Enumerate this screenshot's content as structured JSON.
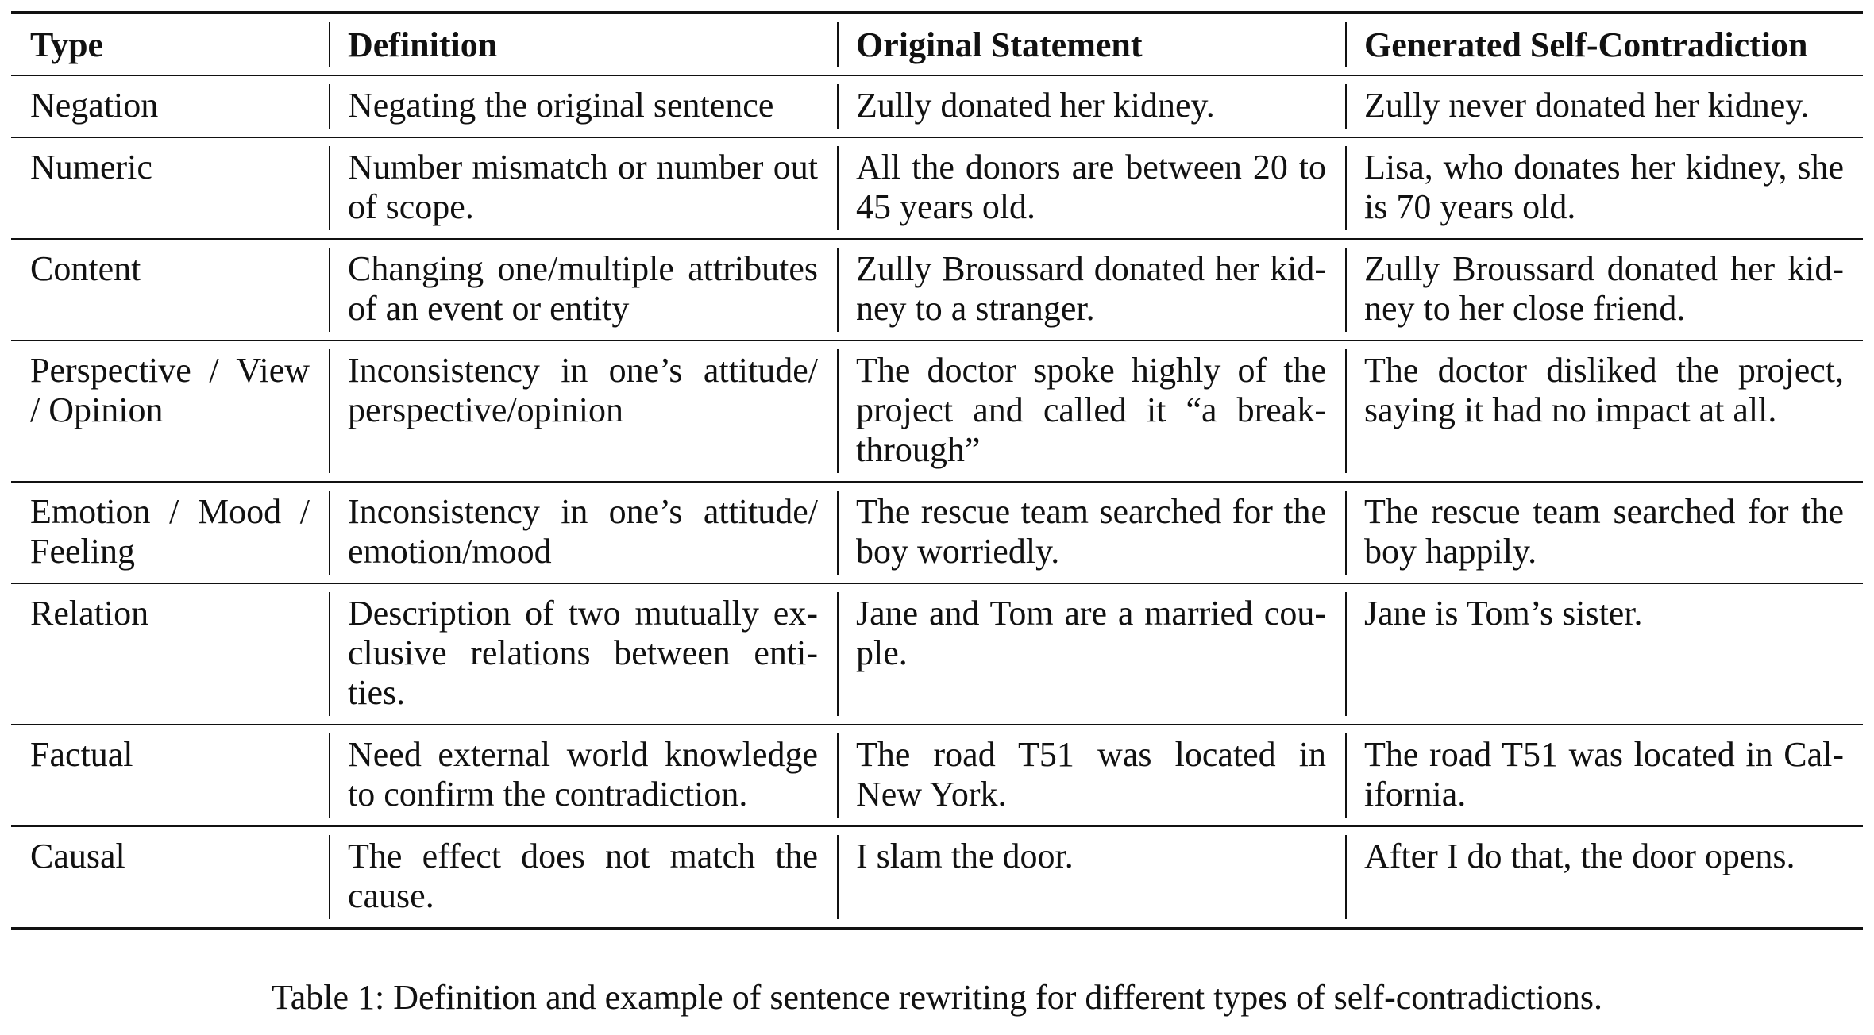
{
  "table": {
    "headers": [
      "Type",
      "Definition",
      "Original Statement",
      "Generated Self-Contradiction"
    ],
    "rows": [
      {
        "type": "Negation",
        "definition": "Negating the original sentence",
        "original": "Zully donated her kidney.",
        "generated": "Zully never donated her kidney."
      },
      {
        "type": "Numeric",
        "definition": "Number mismatch or number out of scope.",
        "original": "All the donors are between 20 to 45 years old.",
        "generated": "Lisa, who donates her kidney, she is 70 years old."
      },
      {
        "type": "Content",
        "definition": "Changing one/multiple at­tributes of an event or entity",
        "original": "Zully Broussard donated her kid­ney to a stranger.",
        "generated": "Zully Broussard donated her kid­ney to her close friend."
      },
      {
        "type": "Perspective / View / Opinion",
        "definition": "Inconsistency in one’s attitude/ perspective/opinion",
        "original": "The doctor spoke highly of the project and called it “a break­through”",
        "generated": "The doctor disliked the project, saying it had no impact at all."
      },
      {
        "type": "Emotion / Mood / Feeling",
        "definition": "Inconsistency in one’s attitude/ emotion/mood",
        "original": "The rescue team searched for the boy worriedly.",
        "generated": "The rescue team searched for the boy happily."
      },
      {
        "type": "Relation",
        "definition": "Description of two mutually ex­clusive relations between enti­ties.",
        "original": "Jane and Tom are a married cou­ple.",
        "generated": "Jane is Tom’s sister."
      },
      {
        "type": "Factual",
        "definition": "Need external world knowledge to confirm the contradiction.",
        "original": "The road T51 was located in New York.",
        "generated": "The road T51 was located in Cal­ifornia."
      },
      {
        "type": "Causal",
        "definition": "The effect does not match the cause.",
        "original": "I slam the door.",
        "generated": "After I do that, the door opens."
      }
    ]
  },
  "caption": "Table 1: Definition and example of sentence rewriting for different types of self-contradictions."
}
